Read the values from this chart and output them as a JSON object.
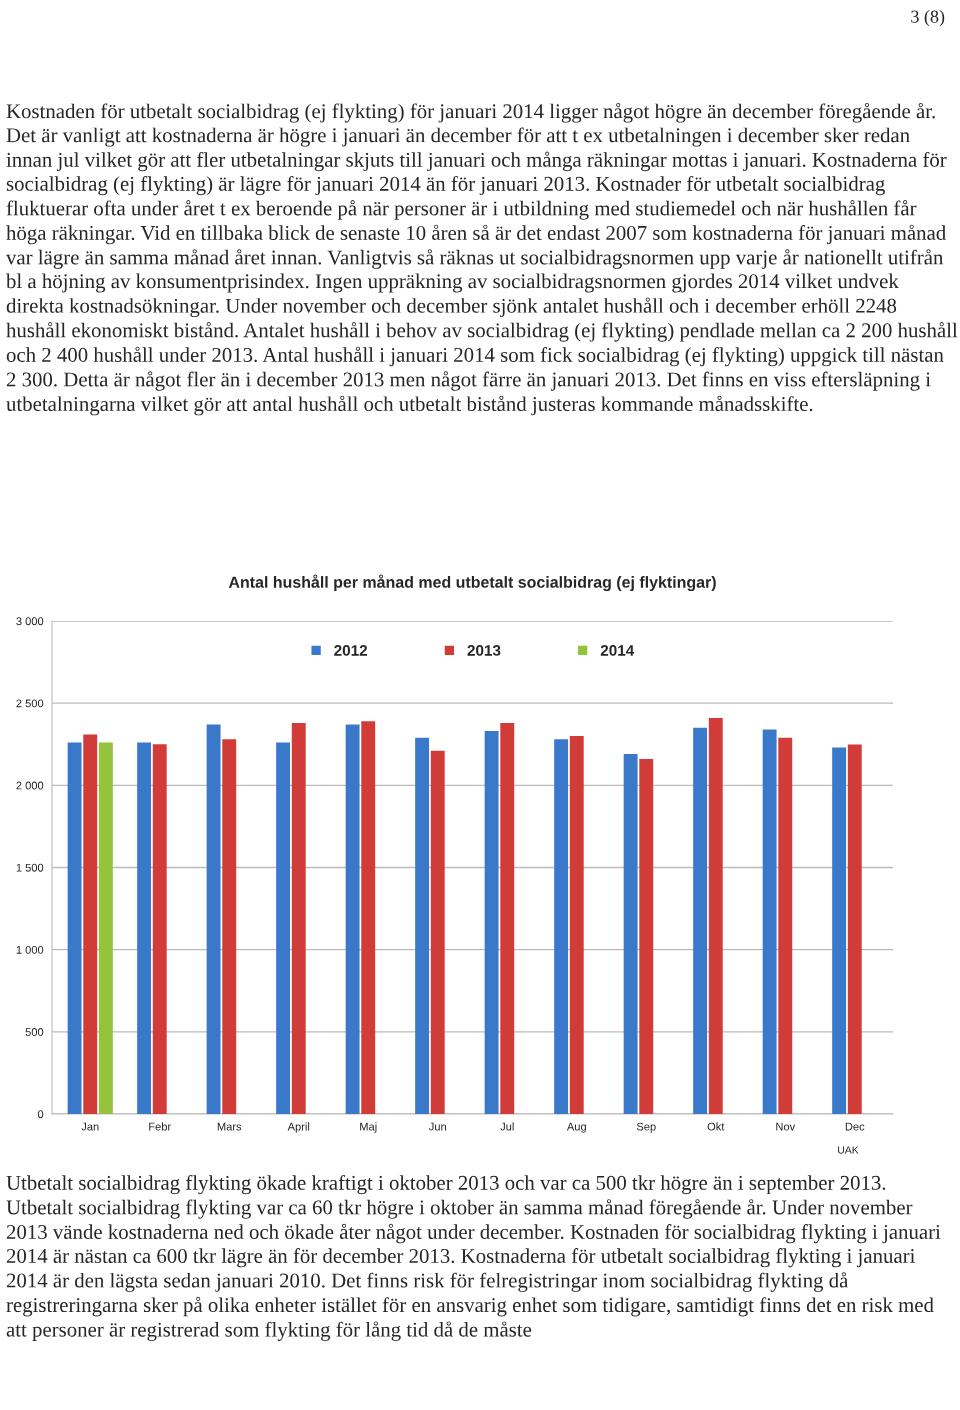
{
  "chart_data": {
    "type": "bar",
    "title": "Antal hushåll per månad med utbetalt socialbidrag (ej flyktingar)",
    "categories": [
      "Jan",
      "Febr",
      "Mars",
      "April",
      "Maj",
      "Jun",
      "Jul",
      "Aug",
      "Sep",
      "Okt",
      "Nov",
      "Dec"
    ],
    "series": [
      {
        "name": "2012",
        "color": "#3a78c9",
        "values": [
          2260,
          2260,
          2370,
          2260,
          2370,
          2290,
          2330,
          2280,
          2190,
          2350,
          2340,
          2230
        ]
      },
      {
        "name": "2013",
        "color": "#d13b38",
        "values": [
          2310,
          2250,
          2280,
          2380,
          2390,
          2210,
          2380,
          2300,
          2160,
          2410,
          2290,
          2248
        ]
      },
      {
        "name": "2014",
        "color": "#94c23c",
        "values": [
          2260,
          null,
          null,
          null,
          null,
          null,
          null,
          null,
          null,
          null,
          null,
          null
        ]
      }
    ],
    "ylim": [
      0,
      3000
    ],
    "yticks": [
      {
        "value": 0,
        "label": "0"
      },
      {
        "value": 500,
        "label": "500"
      },
      {
        "value": 1000,
        "label": "1 000"
      },
      {
        "value": 1500,
        "label": "1 500"
      },
      {
        "value": 2000,
        "label": "2 000"
      },
      {
        "value": 2500,
        "label": "2 500"
      },
      {
        "value": 3000,
        "label": "3 000"
      }
    ],
    "grid": "y",
    "legend": "top",
    "annotations": [
      "3 (8)",
      "Kostnaden för utbetalt socialbidrag (ej flykting) för januari 2014 ligger något högre än december föregående år. Det är vanligt att kostnaderna är högre i januari än december för att t ex utbetalningen i december sker redan innan jul vilket gör att fler utbetalningar skjuts till januari och många räkningar mottas i januari. Kostnaderna för socialbidrag (ej flykting) är lägre för januari 2014 än för januari 2013. Kostnader för utbetalt socialbidrag fluktuerar ofta under året t ex beroende på när personer är i utbildning med studiemedel och när hushållen får höga räkningar. Vid en tillbaka blick de senaste 10 åren så är det endast 2007 som kostnaderna för januari månad var lägre än samma månad året innan. Vanligtvis så räknas ut socialbidragsnormen upp varje år nationellt utifrån bl a höjning av konsumentprisindex. Ingen uppräkning av socialbidragsnormen gjordes 2014 vilket undvek direkta kostnadsökningar. Under november och december sjönk antalet hushåll och i december erhöll 2248 hushåll ekonomiskt bistånd. Antalet hushåll i behov av socialbidrag (ej flykting) pendlade mellan ca 2 200 hushåll och 2 400 hushåll under 2013. Antal hushåll i januari 2014 som fick socialbidrag (ej flykting) uppgick till nästan 2 300. Detta är något fler än i december 2013 men något färre än januari 2013. Det finns en viss eftersläpning i utbetalningarna vilket gör att antal hushåll och utbetalt bistånd justeras kommande månadsskifte.",
      "UAK",
      "Utbetalt socialbidrag flykting ökade kraftigt i oktober 2013 och var ca 500 tkr högre än i september 2013. Utbetalt socialbidrag flykting var ca 60 tkr högre i oktober än samma månad föregående år. Under november 2013 vände kostnaderna ned och ökade åter något under december. Kostnaden för socialbidrag flykting i januari 2014 är nästan ca 600 tkr lägre än för december 2013. Kostnaderna för utbetalt socialbidrag flykting i januari 2014 är den lägsta sedan januari 2010. Det finns risk för felregistringar inom socialbidrag flykting då registreringarna sker på olika enheter istället för en ansvarig enhet som tidigare, samtidigt finns det en risk med att personer är registrerad som flykting för lång tid då de måste"
    ]
  }
}
